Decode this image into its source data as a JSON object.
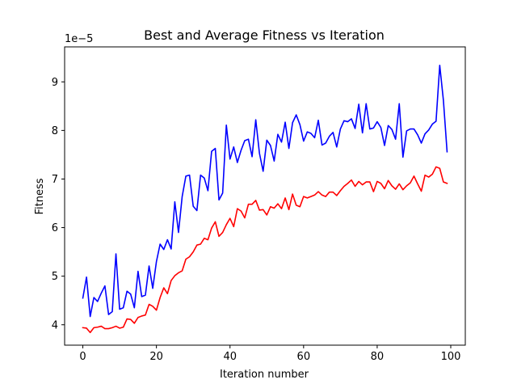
{
  "chart_data": {
    "type": "line",
    "title": "Best and Average Fitness vs Iteration",
    "xlabel": "Iteration number",
    "ylabel": "Fitness",
    "offset_text": "1e−5",
    "xlim": [
      -4.95,
      103.95
    ],
    "ylim": [
      3.58,
      9.72
    ],
    "x_ticks": [
      0,
      20,
      40,
      60,
      80,
      100
    ],
    "y_ticks": [
      4,
      5,
      6,
      7,
      8,
      9
    ],
    "grid": false,
    "colors": {
      "best": "#0000ff",
      "average": "#ff0000"
    },
    "series": [
      {
        "key": "best",
        "values": [
          4.55,
          4.98,
          4.17,
          4.56,
          4.48,
          4.65,
          4.8,
          4.21,
          4.27,
          5.46,
          4.32,
          4.35,
          4.69,
          4.63,
          4.35,
          5.1,
          4.58,
          4.61,
          5.21,
          4.75,
          5.3,
          5.66,
          5.55,
          5.75,
          5.56,
          6.53,
          5.9,
          6.64,
          7.06,
          7.08,
          6.44,
          6.35,
          7.08,
          7.02,
          6.76,
          7.57,
          7.63,
          6.57,
          6.71,
          8.11,
          7.41,
          7.66,
          7.34,
          7.59,
          7.79,
          7.82,
          7.46,
          8.22,
          7.53,
          7.16,
          7.8,
          7.69,
          7.37,
          7.92,
          7.76,
          8.17,
          7.63,
          8.16,
          8.32,
          8.12,
          7.78,
          7.97,
          7.94,
          7.85,
          8.21,
          7.7,
          7.74,
          7.88,
          7.96,
          7.66,
          8.03,
          8.2,
          8.18,
          8.24,
          8.04,
          8.54,
          7.95,
          8.55,
          8.03,
          8.05,
          8.18,
          8.06,
          7.69,
          8.1,
          8.02,
          7.82,
          8.55,
          7.45,
          7.99,
          8.03,
          8.03,
          7.91,
          7.74,
          7.93,
          8.01,
          8.13,
          8.19,
          9.34,
          8.62,
          7.56
        ]
      },
      {
        "key": "average",
        "values": [
          3.94,
          3.93,
          3.84,
          3.94,
          3.95,
          3.97,
          3.92,
          3.92,
          3.94,
          3.97,
          3.93,
          3.95,
          4.12,
          4.11,
          4.03,
          4.15,
          4.18,
          4.2,
          4.42,
          4.38,
          4.3,
          4.56,
          4.76,
          4.64,
          4.91,
          5.01,
          5.07,
          5.11,
          5.35,
          5.4,
          5.5,
          5.64,
          5.66,
          5.78,
          5.75,
          5.99,
          6.12,
          5.82,
          5.9,
          6.06,
          6.19,
          6.02,
          6.39,
          6.34,
          6.2,
          6.48,
          6.48,
          6.56,
          6.36,
          6.37,
          6.26,
          6.43,
          6.4,
          6.49,
          6.39,
          6.61,
          6.37,
          6.69,
          6.46,
          6.43,
          6.64,
          6.61,
          6.64,
          6.67,
          6.74,
          6.67,
          6.64,
          6.73,
          6.73,
          6.66,
          6.76,
          6.85,
          6.91,
          6.98,
          6.85,
          6.95,
          6.88,
          6.94,
          6.94,
          6.74,
          6.95,
          6.91,
          6.8,
          6.97,
          6.86,
          6.79,
          6.9,
          6.78,
          6.86,
          6.92,
          7.06,
          6.9,
          6.75,
          7.08,
          7.04,
          7.1,
          7.25,
          7.22,
          6.94,
          6.91
        ]
      }
    ]
  }
}
